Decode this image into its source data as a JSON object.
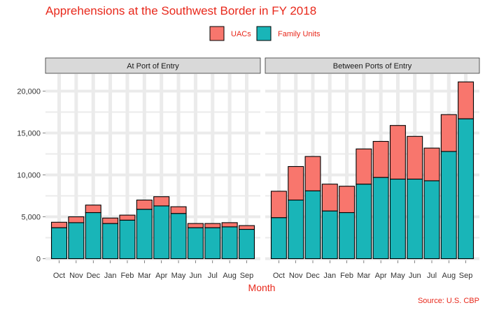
{
  "chart_data": {
    "type": "bar",
    "stacked": true,
    "title": "Apprehensions at the Southwest Border in FY 2018",
    "xlabel": "Month",
    "ylabel": "",
    "caption": "Source: U.S. CBP",
    "categories": [
      "Oct",
      "Nov",
      "Dec",
      "Jan",
      "Feb",
      "Mar",
      "Apr",
      "May",
      "Jun",
      "Jul",
      "Aug",
      "Sep"
    ],
    "ylim": [
      0,
      22000
    ],
    "yticks": [
      0,
      5000,
      10000,
      15000,
      20000
    ],
    "ytick_labels": [
      "0",
      "5,000",
      "10,000",
      "15,000",
      "20,000"
    ],
    "legend": {
      "position": "top",
      "items": [
        {
          "name": "UACs",
          "color": "#f8766d"
        },
        {
          "name": "Family Units",
          "color": "#19b5b8"
        }
      ]
    },
    "panels": [
      {
        "label": "At Port of Entry",
        "series": [
          {
            "name": "Family Units",
            "values": [
              3700,
              4300,
              5500,
              4200,
              4600,
              5900,
              6300,
              5400,
              3700,
              3700,
              3800,
              3500
            ]
          },
          {
            "name": "UACs",
            "values": [
              650,
              700,
              900,
              650,
              600,
              1100,
              1100,
              800,
              500,
              500,
              500,
              450
            ]
          }
        ]
      },
      {
        "label": "Between Ports of Entry",
        "series": [
          {
            "name": "Family Units",
            "values": [
              4900,
              7000,
              8100,
              5700,
              5500,
              8900,
              9700,
              9500,
              9500,
              9300,
              12800,
              16700
            ]
          },
          {
            "name": "UACs",
            "values": [
              3150,
              4000,
              4100,
              3200,
              3150,
              4200,
              4300,
              6400,
              5100,
              3900,
              4400,
              4400
            ]
          }
        ]
      }
    ]
  }
}
